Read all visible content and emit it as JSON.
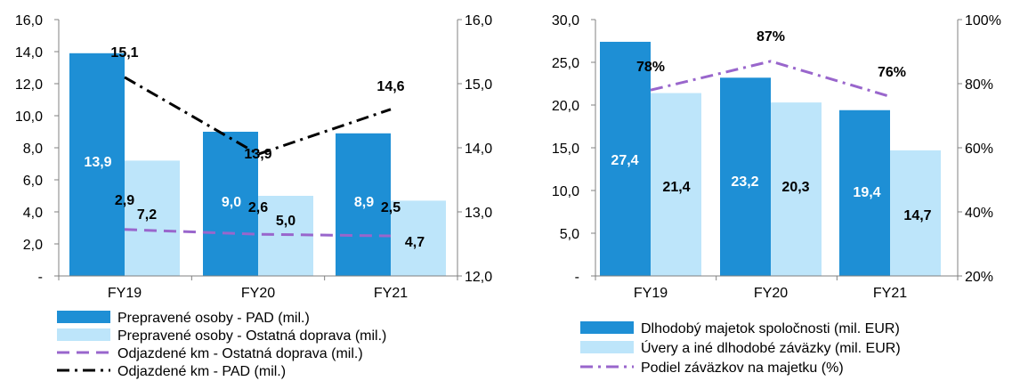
{
  "chart_data": [
    {
      "type": "bar",
      "categories": [
        "FY19",
        "FY20",
        "FY21"
      ],
      "y_left_range": [
        0,
        16
      ],
      "y_left_ticks": [
        "-",
        "2,0",
        "4,0",
        "6,0",
        "8,0",
        "10,0",
        "12,0",
        "14,0",
        "16,0"
      ],
      "y_right_range": [
        12,
        16
      ],
      "y_right_ticks": [
        "12,0",
        "13,0",
        "14,0",
        "15,0",
        "16,0"
      ],
      "bar_series": [
        {
          "name": "Prepravené osoby - PAD (mil.)",
          "values": [
            13.9,
            9.0,
            8.9
          ],
          "labels": [
            "13,9",
            "9,0",
            "8,9"
          ],
          "color": "#1E8FD5",
          "label_color": "#FFFFFF"
        },
        {
          "name": "Prepravené osoby - Ostatná doprava (mil.)",
          "values": [
            7.2,
            5.0,
            4.7
          ],
          "labels": [
            "7,2",
            "5,0",
            "4,7"
          ],
          "color": "#BDE5FA",
          "label_color": "#000000"
        }
      ],
      "line_series": [
        {
          "name": "Odjazdené km - Ostatná doprava (mil.)",
          "axis": "left",
          "values": [
            2.9,
            2.6,
            2.5
          ],
          "labels": [
            "2,9",
            "2,6",
            "2,5"
          ],
          "color": "#9966CC",
          "dash": "dashed"
        },
        {
          "name": "Odjazdené km - PAD (mil.)",
          "axis": "right",
          "values": [
            15.1,
            13.9,
            14.6
          ],
          "labels": [
            "15,1",
            "13,9",
            "14,6"
          ],
          "color": "#000000",
          "dash": "dashdot"
        }
      ],
      "legend_position": "bottom-left",
      "grid": false
    },
    {
      "type": "bar",
      "categories": [
        "FY19",
        "FY20",
        "FY21"
      ],
      "y_left_range": [
        0,
        30
      ],
      "y_left_ticks": [
        "-",
        "5,0",
        "10,0",
        "15,0",
        "20,0",
        "25,0",
        "30,0"
      ],
      "y_right_range": [
        20,
        100
      ],
      "y_right_ticks": [
        "20%",
        "40%",
        "60%",
        "80%",
        "100%"
      ],
      "bar_series": [
        {
          "name": "Dlhodobý majetok spoločnosti (mil. EUR)",
          "values": [
            27.4,
            23.2,
            19.4
          ],
          "labels": [
            "27,4",
            "23,2",
            "19,4"
          ],
          "color": "#1E8FD5",
          "label_color": "#FFFFFF"
        },
        {
          "name": "Úvery a iné dlhodobé záväzky (mil. EUR)",
          "values": [
            21.4,
            20.3,
            14.7
          ],
          "labels": [
            "21,4",
            "20,3",
            "14,7"
          ],
          "color": "#BDE5FA",
          "label_color": "#000000"
        }
      ],
      "line_series": [
        {
          "name": "Podiel záväzkov na majetku (%)",
          "axis": "right",
          "values": [
            78,
            87,
            76
          ],
          "labels": [
            "78%",
            "87%",
            "76%"
          ],
          "color": "#9966CC",
          "dash": "dashdot"
        }
      ],
      "legend_position": "bottom",
      "grid": false
    }
  ]
}
